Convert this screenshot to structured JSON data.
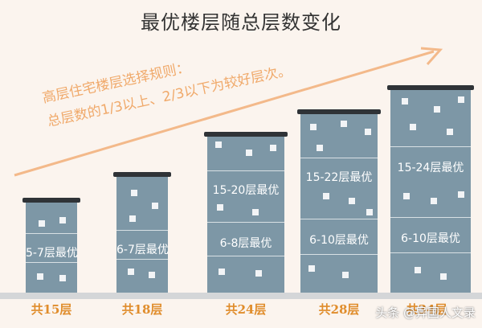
{
  "title": "最优楼层随总层数变化",
  "rule": {
    "line1": "高层住宅楼层选择规则：",
    "line2": "总层数的1/3以上、2/3以下为较好层次。"
  },
  "buildings": [
    {
      "caption": "共15层",
      "labels": [
        "5-7层最优"
      ]
    },
    {
      "caption": "共18层",
      "labels": [
        "6-7层最优"
      ]
    },
    {
      "caption": "共24层",
      "labels": [
        "15-20层最优",
        "6-8层最优"
      ]
    },
    {
      "caption": "共28层",
      "labels": [
        "15-22层最优",
        "6-10层最优"
      ]
    },
    {
      "caption": "共34层",
      "labels": [
        "15-24层最优",
        "6-10层最优"
      ]
    }
  ],
  "watermark": "头条 @异国人文录",
  "colors": {
    "background": "#fbf4ee",
    "building": "#7d97a6",
    "roof": "#2f3337",
    "arrow": "#f3b98a",
    "caption": "#e08d2c"
  }
}
